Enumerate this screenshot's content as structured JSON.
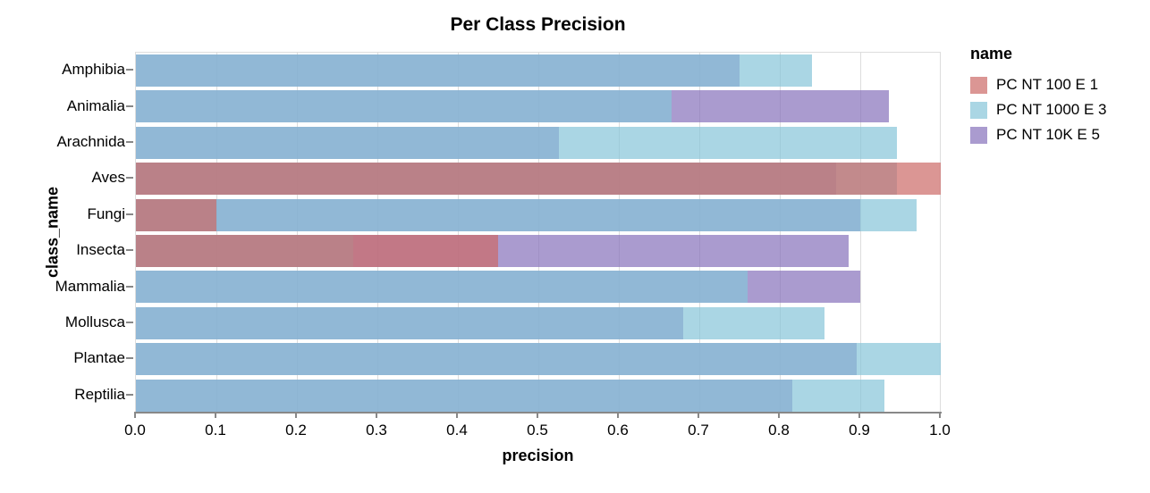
{
  "title": "Per Class Precision",
  "x_axis": {
    "label": "precision",
    "tick_labels": [
      "0.0",
      "0.1",
      "0.2",
      "0.3",
      "0.4",
      "0.5",
      "0.6",
      "0.7",
      "0.8",
      "0.9",
      "1.0"
    ],
    "tick_values": [
      0,
      0.1,
      0.2,
      0.3,
      0.4,
      0.5,
      0.6,
      0.7,
      0.8,
      0.9,
      1.0
    ],
    "min": 0,
    "max": 1
  },
  "y_axis": {
    "label": "class_name"
  },
  "legend": {
    "title": "name",
    "items": [
      {
        "label": "PC NT 100 E 1",
        "color": "rgba(204,105,102,0.7)"
      },
      {
        "label": "PC NT 1000 E 3",
        "color": "rgba(134,196,216,0.7)"
      },
      {
        "label": "PC NT 10K E 5",
        "color": "rgba(134,112,186,0.7)"
      }
    ]
  },
  "colors": {
    "grid": "#dddddd",
    "axis": "#888888",
    "view_border": "#dddddd",
    "series_red": "rgba(204,105,102,0.7)",
    "series_lightblue": "rgba(134,196,216,0.7)",
    "series_purple": "rgba(134,112,186,0.7)"
  },
  "chart_data": {
    "type": "bar",
    "orientation": "horizontal",
    "overlap_mode": "layered-transparent",
    "title": "Per Class Precision",
    "xlabel": "precision",
    "ylabel": "class_name",
    "xlim": [
      0,
      1
    ],
    "grid": true,
    "legend_position": "right",
    "legend_title": "name",
    "categories": [
      "Amphibia",
      "Animalia",
      "Arachnida",
      "Aves",
      "Fungi",
      "Insecta",
      "Mammalia",
      "Mollusca",
      "Plantae",
      "Reptilia"
    ],
    "series": [
      {
        "name": "PC NT 100 E 1",
        "color": "rgba(204,105,102,0.7)",
        "z": 3,
        "values": [
          0,
          0,
          0,
          1.0,
          0.1,
          0.45,
          0,
          0,
          0,
          0
        ]
      },
      {
        "name": "PC NT 1000 E 3",
        "color": "rgba(134,196,216,0.7)",
        "z": 2,
        "values": [
          0.84,
          0.665,
          0.945,
          0.945,
          0.97,
          0.27,
          0.76,
          0.855,
          1.0,
          0.93
        ]
      },
      {
        "name": "PC NT 10K E 5",
        "color": "rgba(134,112,186,0.7)",
        "z": 1,
        "values": [
          0.75,
          0.935,
          0.525,
          0.87,
          0.9,
          0.885,
          0.9,
          0.68,
          0.895,
          0.815
        ]
      }
    ]
  }
}
